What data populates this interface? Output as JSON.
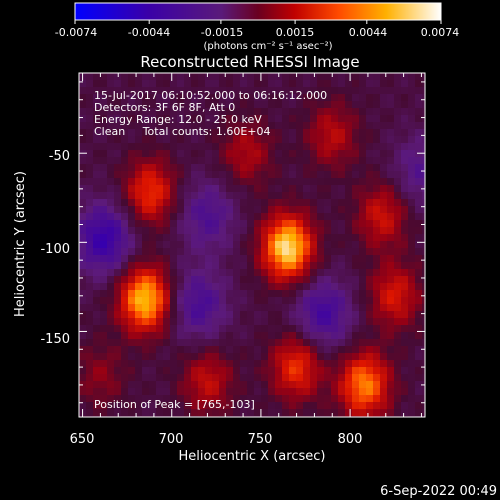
{
  "chart_data": {
    "type": "heatmap",
    "title": "Reconstructed RHESSI Image",
    "xlabel": "Heliocentric X (arcsec)",
    "ylabel": "Heliocentric Y (arcsec)",
    "xlim": [
      648,
      842
    ],
    "ylim": [
      -198,
      -5
    ],
    "x_ticks": [
      650,
      700,
      750,
      800
    ],
    "y_ticks": [
      -50,
      -100,
      -150
    ],
    "colorbar": {
      "ticks": [
        "-0.0074",
        "-0.0044",
        "-0.0015",
        "0.0015",
        "0.0044",
        "0.0074"
      ],
      "tick_values": [
        -0.0074,
        -0.0044,
        -0.0015,
        0.0015,
        0.0044,
        0.0074
      ],
      "range": [
        -0.0074,
        0.0074
      ],
      "units": "(photons cm⁻² s⁻¹ asec⁻²)"
    },
    "annotations": [
      "15-Jul-2017 06:10:52.000 to 06:16:12.000",
      "Detectors: 3F 6F 8F, Att 0",
      "Energy Range: 12.0 - 25.0 keV",
      "Clean     Total counts: 1.60E+04"
    ],
    "peak_label": "Position of Peak = [765,-103]",
    "peak": [
      765,
      -103
    ],
    "sources": [
      {
        "x": 765,
        "y": -103,
        "level": 1.0
      },
      {
        "x": 685,
        "y": -132,
        "level": 0.92
      },
      {
        "x": 688,
        "y": -72,
        "level": 0.55
      },
      {
        "x": 742,
        "y": -50,
        "level": 0.32
      },
      {
        "x": 790,
        "y": -40,
        "level": 0.35
      },
      {
        "x": 818,
        "y": -85,
        "level": 0.42
      },
      {
        "x": 825,
        "y": -130,
        "level": 0.45
      },
      {
        "x": 808,
        "y": -180,
        "level": 0.75
      },
      {
        "x": 770,
        "y": -170,
        "level": 0.55
      },
      {
        "x": 720,
        "y": -178,
        "level": 0.38
      },
      {
        "x": 660,
        "y": -175,
        "level": 0.22
      }
    ],
    "minima": [
      {
        "x": 662,
        "y": -98,
        "level": -0.55
      },
      {
        "x": 715,
        "y": -135,
        "level": -0.4
      },
      {
        "x": 785,
        "y": -140,
        "level": -0.45
      },
      {
        "x": 720,
        "y": -85,
        "level": -0.35
      },
      {
        "x": 840,
        "y": -60,
        "level": -0.3
      }
    ]
  },
  "footer": {
    "timestamp": "6-Sep-2022 00:49"
  }
}
